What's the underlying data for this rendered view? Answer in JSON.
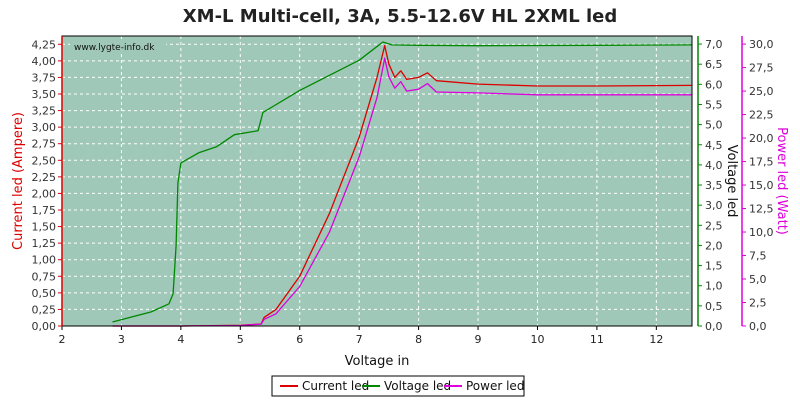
{
  "chart_data": {
    "type": "line",
    "title": "XM-L Multi-cell, 3A, 5.5-12.6V HL 2XML led",
    "watermark": "www.lygte-info.dk",
    "xlabel": "Voltage in",
    "xlim": [
      2,
      12.6
    ],
    "xticks": [
      "2",
      "3",
      "4",
      "5",
      "6",
      "7",
      "8",
      "9",
      "10",
      "11",
      "12"
    ],
    "y_left": {
      "label": "Current led (Ampere)",
      "color": "#dd0000",
      "lim": [
        0,
        4.375
      ],
      "ticks": [
        "0,00",
        "0,25",
        "0,50",
        "0,75",
        "1,00",
        "1,25",
        "1,50",
        "1,75",
        "2,00",
        "2,25",
        "2,50",
        "2,75",
        "3,00",
        "3,25",
        "3,50",
        "3,75",
        "4,00",
        "4,25"
      ]
    },
    "y_right_1": {
      "label": "Voltage led",
      "color": "#008800",
      "lim": [
        0,
        7.2
      ],
      "ticks": [
        "0,0",
        "0,5",
        "1,0",
        "1,5",
        "2,0",
        "2,5",
        "3,0",
        "3,5",
        "4,0",
        "4,5",
        "5,0",
        "5,5",
        "6,0",
        "6,5",
        "7,0"
      ]
    },
    "y_right_2": {
      "label": "Power led (Watt)",
      "color": "#dd00dd",
      "lim": [
        0,
        30.86
      ],
      "ticks": [
        "0,0",
        "2,5",
        "5,0",
        "7,5",
        "10,0",
        "12,5",
        "15,0",
        "17,5",
        "20,0",
        "22,5",
        "25,0",
        "27,5",
        "30,0"
      ]
    },
    "grid": true,
    "background": "#9fc8b8",
    "legend_position": "bottom",
    "series": [
      {
        "name": "Current led",
        "axis": "left",
        "color": "#dd0000",
        "points": [
          [
            2.85,
            0.0
          ],
          [
            4.0,
            0.0
          ],
          [
            5.0,
            0.01
          ],
          [
            5.35,
            0.03
          ],
          [
            5.4,
            0.13
          ],
          [
            5.6,
            0.25
          ],
          [
            6.0,
            0.75
          ],
          [
            6.5,
            1.7
          ],
          [
            7.0,
            2.85
          ],
          [
            7.3,
            3.75
          ],
          [
            7.43,
            4.23
          ],
          [
            7.5,
            3.95
          ],
          [
            7.6,
            3.75
          ],
          [
            7.7,
            3.85
          ],
          [
            7.8,
            3.72
          ],
          [
            8.0,
            3.75
          ],
          [
            8.15,
            3.82
          ],
          [
            8.3,
            3.7
          ],
          [
            9.0,
            3.65
          ],
          [
            10.0,
            3.62
          ],
          [
            11.0,
            3.62
          ],
          [
            12.6,
            3.63
          ]
        ]
      },
      {
        "name": "Voltage led",
        "axis": "right_1",
        "color": "#008800",
        "points": [
          [
            2.85,
            0.1
          ],
          [
            3.5,
            0.35
          ],
          [
            3.8,
            0.55
          ],
          [
            3.87,
            0.8
          ],
          [
            3.92,
            2.0
          ],
          [
            3.95,
            3.55
          ],
          [
            4.0,
            4.05
          ],
          [
            4.3,
            4.3
          ],
          [
            4.6,
            4.45
          ],
          [
            4.9,
            4.75
          ],
          [
            5.3,
            4.85
          ],
          [
            5.38,
            5.3
          ],
          [
            6.0,
            5.85
          ],
          [
            7.0,
            6.6
          ],
          [
            7.4,
            7.05
          ],
          [
            7.55,
            6.98
          ],
          [
            8.0,
            6.97
          ],
          [
            9.0,
            6.96
          ],
          [
            11.0,
            6.97
          ],
          [
            12.6,
            6.98
          ]
        ]
      },
      {
        "name": "Power led",
        "axis": "right_2",
        "color": "#dd00dd",
        "points": [
          [
            2.85,
            0.0
          ],
          [
            4.0,
            0.0
          ],
          [
            5.0,
            0.05
          ],
          [
            5.35,
            0.2
          ],
          [
            5.4,
            0.7
          ],
          [
            5.6,
            1.3
          ],
          [
            6.0,
            4.2
          ],
          [
            6.5,
            10.0
          ],
          [
            7.0,
            18.0
          ],
          [
            7.3,
            24.3
          ],
          [
            7.43,
            28.5
          ],
          [
            7.5,
            26.5
          ],
          [
            7.6,
            25.3
          ],
          [
            7.7,
            26.0
          ],
          [
            7.8,
            25.0
          ],
          [
            8.0,
            25.2
          ],
          [
            8.15,
            25.8
          ],
          [
            8.3,
            24.9
          ],
          [
            9.0,
            24.8
          ],
          [
            10.0,
            24.6
          ],
          [
            11.0,
            24.6
          ],
          [
            12.6,
            24.6
          ]
        ]
      }
    ]
  }
}
